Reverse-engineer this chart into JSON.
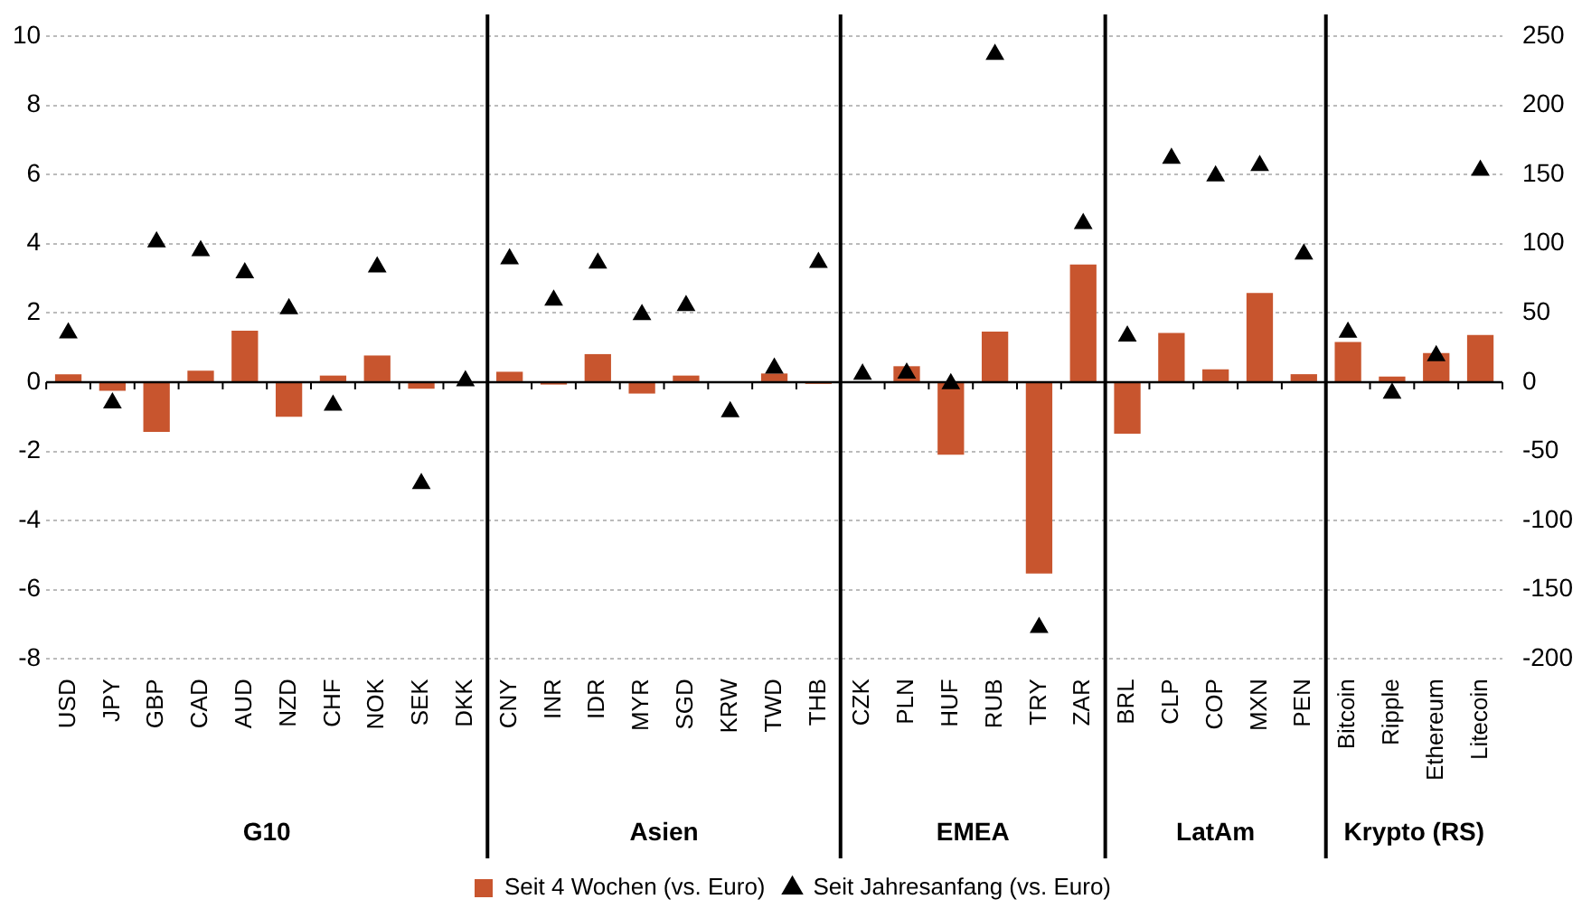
{
  "chart_data": {
    "type": "bar",
    "categories": [
      "USD",
      "JPY",
      "GBP",
      "CAD",
      "AUD",
      "NZD",
      "CHF",
      "NOK",
      "SEK",
      "DKK",
      "CNY",
      "INR",
      "IDR",
      "MYR",
      "SGD",
      "KRW",
      "TWD",
      "THB",
      "CZK",
      "PLN",
      "HUF",
      "RUB",
      "TRY",
      "ZAR",
      "BRL",
      "CLP",
      "COP",
      "MXN",
      "PEN",
      "Bitcoin",
      "Ripple",
      "Ethereum",
      "Litecoin"
    ],
    "series": [
      {
        "name": "Seit 4 Wochen (vs. Euro)",
        "color": "#c8552e",
        "values": [
          0.23,
          -0.25,
          -1.44,
          0.33,
          1.49,
          -1.0,
          0.19,
          0.77,
          -0.19,
          0.0,
          0.3,
          -0.07,
          0.81,
          -0.33,
          0.19,
          null,
          0.25,
          -0.05,
          0.0,
          0.46,
          -2.1,
          1.46,
          -5.53,
          3.4,
          -1.49,
          1.42,
          0.37,
          2.58,
          0.23,
          null,
          null,
          null,
          null
        ]
      },
      {
        "name": "Seit Jahresanfang (vs. Euro)",
        "type": "scatter",
        "color": "#000000",
        "values": [
          1.42,
          -0.6,
          4.05,
          3.8,
          3.16,
          2.12,
          -0.67,
          3.33,
          -2.93,
          0.04,
          3.56,
          2.37,
          3.44,
          1.95,
          2.21,
          -0.86,
          0.4,
          3.46,
          0.23,
          0.26,
          -0.05,
          9.47,
          -7.09,
          4.58,
          1.33,
          6.47,
          5.96,
          6.26,
          3.7,
          null,
          null,
          null,
          null
        ]
      },
      {
        "axis": "y2",
        "color": "#c8552e",
        "values": [
          null,
          null,
          null,
          null,
          null,
          null,
          null,
          null,
          null,
          null,
          null,
          null,
          null,
          null,
          null,
          null,
          null,
          null,
          null,
          null,
          null,
          null,
          null,
          null,
          null,
          null,
          null,
          null,
          null,
          29,
          4,
          21,
          34
        ]
      },
      {
        "type": "scatter",
        "axis": "y2",
        "color": "#000000",
        "values": [
          null,
          null,
          null,
          null,
          null,
          null,
          null,
          null,
          null,
          null,
          null,
          null,
          null,
          null,
          null,
          null,
          null,
          null,
          null,
          null,
          null,
          null,
          null,
          null,
          null,
          null,
          null,
          null,
          null,
          36,
          -8,
          19,
          153
        ]
      }
    ],
    "ylim": [
      -8,
      10
    ],
    "yticks": [
      -8,
      -6,
      -4,
      -2,
      0,
      2,
      4,
      6,
      8,
      10
    ],
    "y2lim": [
      -200,
      250
    ],
    "y2ticks": [
      -200,
      -150,
      -100,
      -50,
      0,
      50,
      100,
      150,
      200,
      250
    ],
    "annotations": [
      "G10",
      "Asien",
      "EMEA",
      "LatAm",
      "Krypto (RS)"
    ],
    "marker": "triangle",
    "grid": "y",
    "legend": "bottom"
  }
}
